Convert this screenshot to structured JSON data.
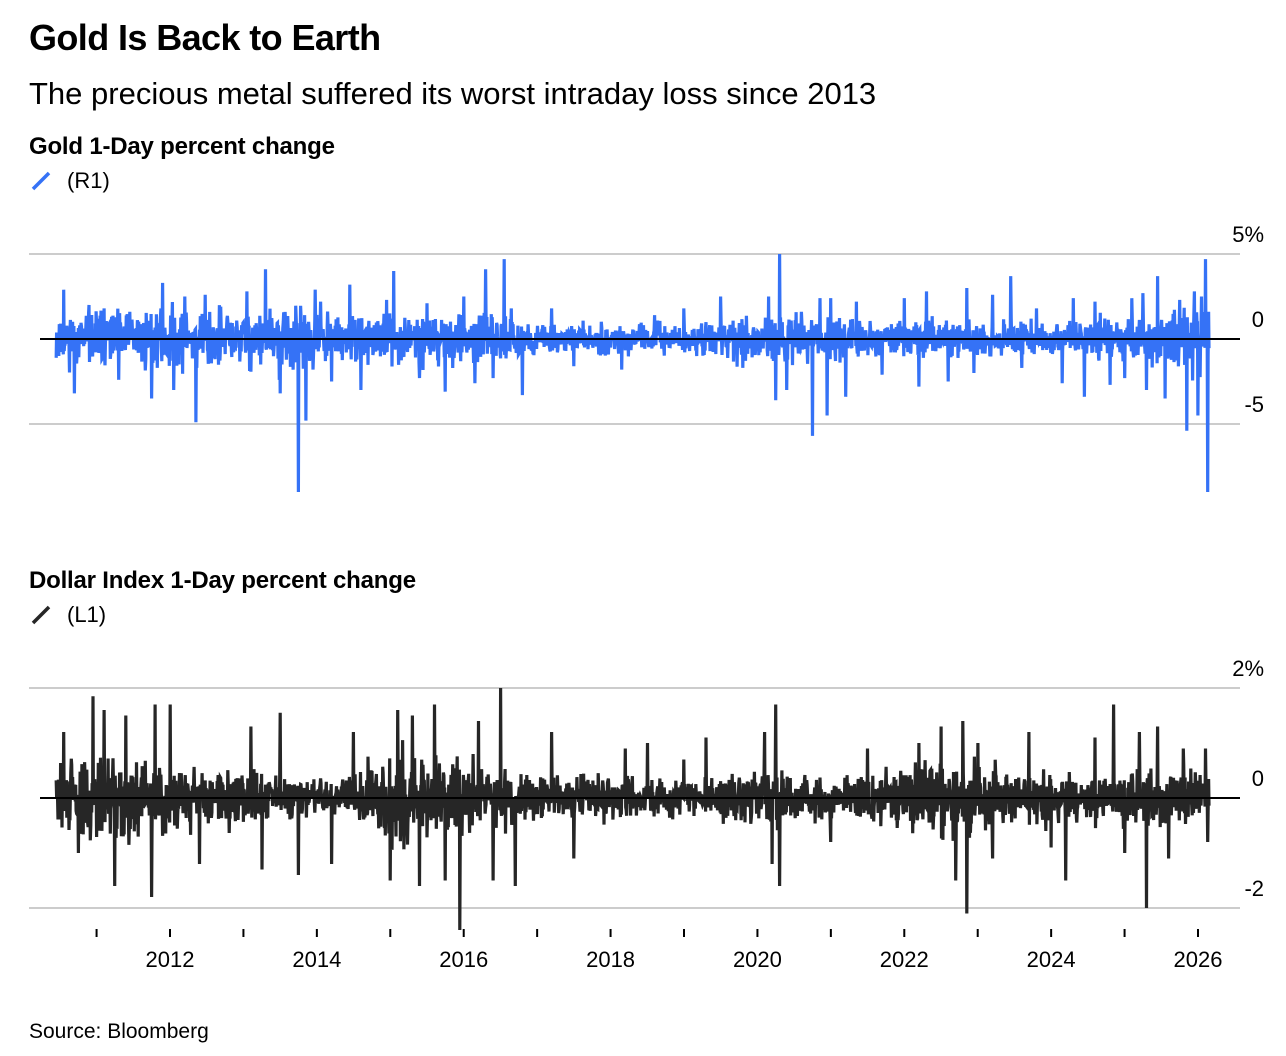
{
  "title": "Gold Is Back to Earth",
  "subtitle": "The precious metal suffered its worst intraday loss since 2013",
  "source": "Source: Bloomberg",
  "colors": {
    "gold": "#3572f6",
    "dollar": "#262626",
    "grid": "#cccccc",
    "zero": "#000000"
  },
  "chart_data": [
    {
      "type": "line",
      "title": "Gold 1-Day percent change",
      "legend": "(R1)",
      "axis_side": "right",
      "unit": "%",
      "ylim": [
        -9,
        5
      ],
      "yticks": [
        5,
        0,
        -5
      ],
      "ytick_labels": [
        "5%",
        "0",
        "-5"
      ],
      "x_range": [
        2010.45,
        2026.15
      ],
      "volatility": [
        [
          2010.4,
          1.1
        ],
        [
          2011.5,
          1.5
        ],
        [
          2013.5,
          1.6
        ],
        [
          2014.5,
          1.15
        ],
        [
          2016.3,
          1.2
        ],
        [
          2017.0,
          0.75
        ],
        [
          2019.0,
          0.7
        ],
        [
          2020.3,
          1.3
        ],
        [
          2021.0,
          1.0
        ],
        [
          2022.5,
          0.95
        ],
        [
          2024.0,
          0.85
        ],
        [
          2024.9,
          1.1
        ],
        [
          2025.5,
          1.3
        ],
        [
          2026.2,
          1.8
        ]
      ],
      "spikes": [
        [
          2010.55,
          2.9
        ],
        [
          2010.7,
          -3.2
        ],
        [
          2010.9,
          2.0
        ],
        [
          2011.1,
          1.8
        ],
        [
          2011.3,
          -2.4
        ],
        [
          2011.45,
          1.6
        ],
        [
          2011.75,
          -3.5
        ],
        [
          2011.9,
          3.3
        ],
        [
          2012.05,
          -3.0
        ],
        [
          2012.2,
          2.5
        ],
        [
          2012.35,
          -4.9
        ],
        [
          2012.48,
          2.6
        ],
        [
          2013.05,
          2.8
        ],
        [
          2013.3,
          4.1
        ],
        [
          2013.5,
          -3.2
        ],
        [
          2013.95,
          -1.8
        ],
        [
          2013.75,
          -9.0
        ],
        [
          2013.85,
          -4.8
        ],
        [
          2013.98,
          2.9
        ],
        [
          2014.05,
          2.2
        ],
        [
          2014.2,
          -2.5
        ],
        [
          2014.45,
          3.2
        ],
        [
          2014.6,
          -3.0
        ],
        [
          2014.95,
          2.3
        ],
        [
          2015.4,
          -2.3
        ],
        [
          2015.05,
          4.0
        ],
        [
          2015.5,
          2.1
        ],
        [
          2015.75,
          -3.1
        ],
        [
          2016.0,
          2.5
        ],
        [
          2016.15,
          -2.6
        ],
        [
          2016.3,
          4.1
        ],
        [
          2016.4,
          -2.3
        ],
        [
          2016.55,
          4.7
        ],
        [
          2016.65,
          1.8
        ],
        [
          2016.8,
          -3.3
        ],
        [
          2017.2,
          1.8
        ],
        [
          2017.5,
          -1.6
        ],
        [
          2018.15,
          -1.8
        ],
        [
          2018.6,
          1.4
        ],
        [
          2019.0,
          1.8
        ],
        [
          2019.5,
          2.5
        ],
        [
          2019.8,
          -1.7
        ],
        [
          2020.15,
          2.5
        ],
        [
          2020.25,
          -3.6
        ],
        [
          2020.3,
          5.1
        ],
        [
          2020.4,
          -3.0
        ],
        [
          2020.6,
          1.6
        ],
        [
          2020.75,
          -5.7
        ],
        [
          2020.85,
          2.4
        ],
        [
          2020.95,
          -4.5
        ],
        [
          2021.0,
          2.4
        ],
        [
          2021.2,
          -3.4
        ],
        [
          2021.35,
          2.2
        ],
        [
          2021.7,
          -2.1
        ],
        [
          2022.0,
          2.4
        ],
        [
          2022.2,
          -2.8
        ],
        [
          2022.3,
          2.8
        ],
        [
          2022.6,
          -2.5
        ],
        [
          2022.85,
          3.0
        ],
        [
          2022.95,
          -2.0
        ],
        [
          2023.2,
          2.6
        ],
        [
          2023.45,
          3.7
        ],
        [
          2023.6,
          -1.7
        ],
        [
          2023.8,
          1.8
        ],
        [
          2024.15,
          -2.6
        ],
        [
          2024.3,
          2.4
        ],
        [
          2024.45,
          -3.4
        ],
        [
          2024.6,
          2.2
        ],
        [
          2024.8,
          -2.7
        ],
        [
          2025.0,
          -2.3
        ],
        [
          2025.1,
          2.4
        ],
        [
          2025.25,
          2.7
        ],
        [
          2025.3,
          -3.0
        ],
        [
          2025.45,
          3.7
        ],
        [
          2025.55,
          -3.5
        ],
        [
          2025.75,
          2.3
        ],
        [
          2025.85,
          -5.4
        ],
        [
          2025.95,
          2.8
        ],
        [
          2026.0,
          -4.5
        ],
        [
          2026.05,
          2.5
        ],
        [
          2026.1,
          4.7
        ],
        [
          2026.13,
          -9.0
        ]
      ]
    },
    {
      "type": "line",
      "title": "Dollar Index 1-Day percent change",
      "legend": "(L1)",
      "axis_side": "right",
      "unit": "%",
      "ylim": [
        -2.5,
        2
      ],
      "yticks": [
        2,
        0,
        -2
      ],
      "ytick_labels": [
        "2%",
        "0",
        "-2"
      ],
      "x_range": [
        2010.45,
        2026.15
      ],
      "volatility": [
        [
          2010.4,
          0.6
        ],
        [
          2011.5,
          0.62
        ],
        [
          2012.5,
          0.45
        ],
        [
          2013.5,
          0.38
        ],
        [
          2014.3,
          0.3
        ],
        [
          2015.0,
          0.68
        ],
        [
          2016.0,
          0.6
        ],
        [
          2017.0,
          0.38
        ],
        [
          2019.0,
          0.27
        ],
        [
          2020.2,
          0.5
        ],
        [
          2021.0,
          0.3
        ],
        [
          2022.0,
          0.5
        ],
        [
          2022.8,
          0.62
        ],
        [
          2023.5,
          0.4
        ],
        [
          2024.5,
          0.35
        ],
        [
          2025.3,
          0.5
        ],
        [
          2026.2,
          0.4
        ]
      ],
      "spikes": [
        [
          2010.55,
          1.2
        ],
        [
          2010.75,
          -1.0
        ],
        [
          2010.95,
          1.85
        ],
        [
          2011.1,
          1.6
        ],
        [
          2011.25,
          -1.6
        ],
        [
          2011.4,
          1.5
        ],
        [
          2011.75,
          -1.8
        ],
        [
          2011.8,
          1.7
        ],
        [
          2012.0,
          1.7
        ],
        [
          2012.4,
          -1.2
        ],
        [
          2013.1,
          1.3
        ],
        [
          2013.25,
          -1.3
        ],
        [
          2013.5,
          1.55
        ],
        [
          2013.75,
          -1.4
        ],
        [
          2014.2,
          -1.2
        ],
        [
          2014.5,
          1.2
        ],
        [
          2015.0,
          -1.5
        ],
        [
          2015.1,
          1.6
        ],
        [
          2015.3,
          1.5
        ],
        [
          2015.4,
          -1.6
        ],
        [
          2015.6,
          1.7
        ],
        [
          2015.75,
          -1.5
        ],
        [
          2015.95,
          -2.4
        ],
        [
          2016.2,
          1.4
        ],
        [
          2016.4,
          -1.5
        ],
        [
          2016.5,
          2.05
        ],
        [
          2016.7,
          -1.6
        ],
        [
          2017.2,
          1.2
        ],
        [
          2017.5,
          -1.1
        ],
        [
          2018.2,
          0.9
        ],
        [
          2018.5,
          1.0
        ],
        [
          2019.0,
          0.7
        ],
        [
          2019.3,
          1.1
        ],
        [
          2020.1,
          1.2
        ],
        [
          2020.2,
          -1.2
        ],
        [
          2020.25,
          1.7
        ],
        [
          2020.3,
          -1.6
        ],
        [
          2021.0,
          -0.8
        ],
        [
          2021.5,
          0.9
        ],
        [
          2022.2,
          1.0
        ],
        [
          2022.5,
          1.3
        ],
        [
          2022.7,
          -1.5
        ],
        [
          2022.8,
          1.4
        ],
        [
          2022.85,
          -2.1
        ],
        [
          2023.0,
          1.0
        ],
        [
          2023.2,
          -1.1
        ],
        [
          2023.7,
          1.2
        ],
        [
          2024.0,
          -0.9
        ],
        [
          2024.2,
          -1.5
        ],
        [
          2024.6,
          1.1
        ],
        [
          2024.85,
          1.7
        ],
        [
          2025.0,
          -1.0
        ],
        [
          2025.2,
          1.2
        ],
        [
          2025.3,
          -2.0
        ],
        [
          2025.45,
          1.3
        ],
        [
          2025.6,
          -1.1
        ],
        [
          2025.8,
          0.9
        ],
        [
          2026.1,
          0.9
        ],
        [
          2026.13,
          -0.8
        ]
      ]
    }
  ],
  "x_axis": {
    "labels": [
      "2012",
      "2014",
      "2016",
      "2018",
      "2020",
      "2022",
      "2024",
      "2026"
    ],
    "label_years": [
      2012,
      2014,
      2016,
      2018,
      2020,
      2022,
      2024,
      2026
    ],
    "minor_years": [
      2011,
      2013,
      2015,
      2017,
      2019,
      2021,
      2023,
      2025
    ]
  }
}
